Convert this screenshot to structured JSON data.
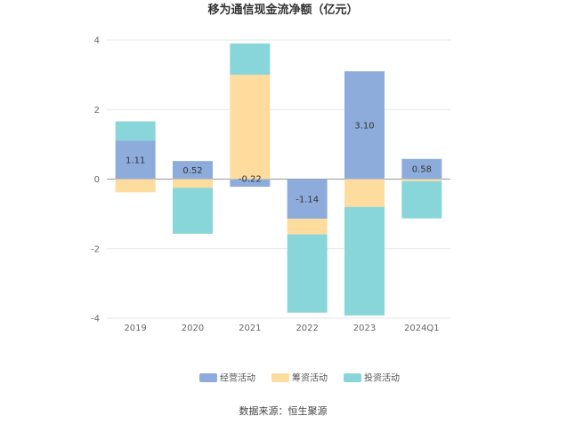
{
  "chart_data": {
    "type": "bar",
    "stacked": true,
    "title": "移为通信现金流净额（亿元）",
    "categories": [
      "2019",
      "2020",
      "2021",
      "2022",
      "2023",
      "2024Q1"
    ],
    "series": [
      {
        "name": "经营活动",
        "color": "#8dacdc",
        "values": [
          1.11,
          0.52,
          -0.22,
          -1.14,
          3.1,
          0.58
        ],
        "labels": [
          "1.11",
          "0.52",
          "-0.22",
          "-1.14",
          "3.10",
          "0.58"
        ]
      },
      {
        "name": "筹资活动",
        "color": "#fddc9e",
        "values": [
          -0.38,
          -0.25,
          3.0,
          -0.45,
          -0.8,
          -0.06
        ]
      },
      {
        "name": "投资活动",
        "color": "#88d6da",
        "values": [
          0.55,
          -1.32,
          0.9,
          -2.25,
          -3.12,
          -1.07
        ]
      }
    ],
    "yticks": [
      "4",
      "2",
      "0",
      "-2",
      "-4"
    ],
    "ylim": [
      -4,
      4
    ],
    "grid": true,
    "legend": "bottom-center"
  },
  "footer": {
    "source": "数据来源：恒生聚源"
  }
}
